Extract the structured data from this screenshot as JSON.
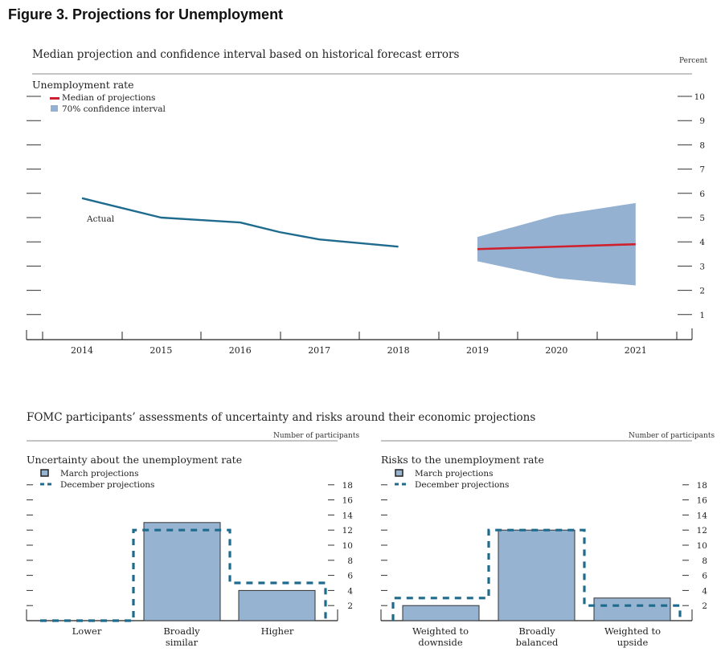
{
  "figure_title": "Figure 3. Projections for Unemployment",
  "top_panel": {
    "subtitle": "Median projection and confidence interval based on historical forecast errors",
    "unit_label": "Percent"
  },
  "bottom_section": {
    "subtitle": "FOMC participants’ assessments of uncertainty and risks around their economic projections"
  },
  "colors": {
    "actual": "#1f6b8e",
    "median": "#d0202e",
    "ci": "#94b1d1",
    "bar": "#97b3d2",
    "december": "#1f6b8e"
  },
  "chart_data": [
    {
      "type": "line",
      "title": "Unemployment rate",
      "ylabel": "Percent",
      "xlabel": "",
      "ylim": [
        0,
        10
      ],
      "yticks": [
        1,
        2,
        3,
        4,
        5,
        6,
        7,
        8,
        9,
        10
      ],
      "xticks": [
        "2014",
        "2015",
        "2016",
        "2017",
        "2018",
        "2019",
        "2020",
        "2021"
      ],
      "grid": false,
      "legend": [
        "Median of projections",
        "70% confidence interval"
      ],
      "legend_position": "top-left",
      "annotations": [
        {
          "text": "Actual",
          "near": "2014"
        }
      ],
      "series": [
        {
          "name": "Actual",
          "x": [
            2014.0,
            2014.5,
            2015.0,
            2015.5,
            2016.0,
            2016.5,
            2017.0,
            2017.5,
            2018.0
          ],
          "values": [
            5.8,
            5.4,
            5.0,
            4.9,
            4.8,
            4.4,
            4.1,
            3.95,
            3.8
          ]
        },
        {
          "name": "Median of projections",
          "x": [
            2019,
            2020,
            2021
          ],
          "values": [
            3.7,
            3.8,
            3.9
          ]
        },
        {
          "name": "70% confidence interval",
          "x": [
            2019,
            2020,
            2021
          ],
          "lower": [
            3.2,
            2.5,
            2.2
          ],
          "upper": [
            4.2,
            5.1,
            5.6
          ]
        }
      ]
    },
    {
      "type": "bar",
      "title": "Uncertainty about the unemployment rate",
      "ylabel": "Number of participants",
      "categories": [
        "Lower",
        "Broadly similar",
        "Higher"
      ],
      "category_lines": [
        [
          "Lower"
        ],
        [
          "Broadly",
          "similar"
        ],
        [
          "Higher"
        ]
      ],
      "ylim": [
        0,
        19
      ],
      "yticks": [
        2,
        4,
        6,
        8,
        10,
        12,
        14,
        16,
        18
      ],
      "legend": [
        "March projections",
        "December projections"
      ],
      "legend_position": "top-left",
      "series": [
        {
          "name": "March projections",
          "values": [
            0,
            13,
            4
          ]
        },
        {
          "name": "December projections",
          "values": [
            0,
            12,
            5
          ]
        }
      ]
    },
    {
      "type": "bar",
      "title": "Risks to the unemployment rate",
      "ylabel": "Number of participants",
      "categories": [
        "Weighted to downside",
        "Broadly balanced",
        "Weighted to upside"
      ],
      "category_lines": [
        [
          "Weighted to",
          "downside"
        ],
        [
          "Broadly",
          "balanced"
        ],
        [
          "Weighted to",
          "upside"
        ]
      ],
      "ylim": [
        0,
        19
      ],
      "yticks": [
        2,
        4,
        6,
        8,
        10,
        12,
        14,
        16,
        18
      ],
      "legend": [
        "March projections",
        "December projections"
      ],
      "legend_position": "top-left",
      "series": [
        {
          "name": "March projections",
          "values": [
            2,
            12,
            3
          ]
        },
        {
          "name": "December projections",
          "values": [
            3,
            12,
            2
          ]
        }
      ]
    }
  ]
}
